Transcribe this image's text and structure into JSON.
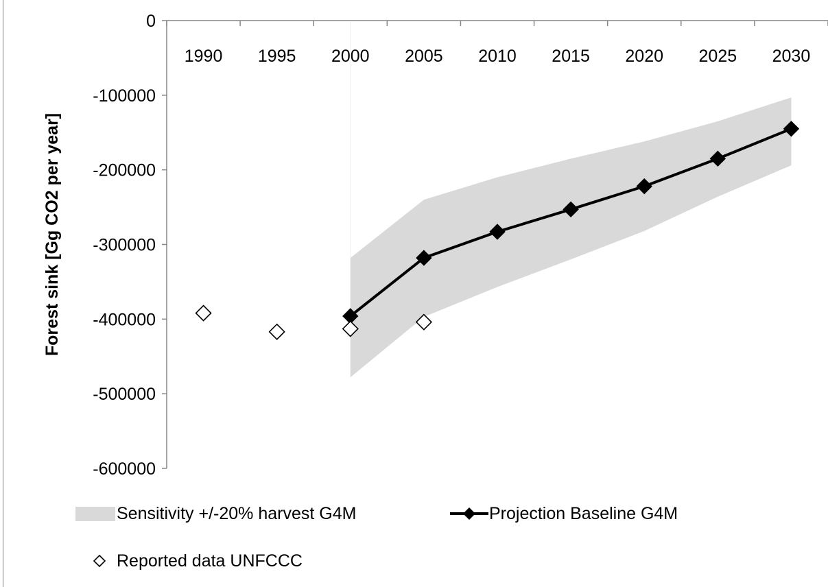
{
  "chart_data": {
    "type": "line",
    "xlabel": "",
    "ylabel": "Forest sink [Gg CO2 per year]",
    "categories": [
      "1990",
      "1995",
      "2000",
      "2005",
      "2010",
      "2015",
      "2020",
      "2025",
      "2030"
    ],
    "y_tick_labels": [
      "0",
      "-100000",
      "-200000",
      "-300000",
      "-400000",
      "-500000",
      "-600000"
    ],
    "ylim": [
      -600000,
      0
    ],
    "grid": false,
    "legend_position": "bottom",
    "series": [
      {
        "name": "Sensitivity +/-20% harvest G4M",
        "kind": "band",
        "color": "#d9d9d9",
        "x": [
          "2000",
          "2005",
          "2010",
          "2015",
          "2020",
          "2025",
          "2030"
        ],
        "upper": [
          -318000,
          -240000,
          -210000,
          -185000,
          -162000,
          -135000,
          -103000
        ],
        "lower": [
          -478000,
          -397000,
          -357000,
          -320000,
          -282000,
          -236000,
          -194000
        ]
      },
      {
        "name": "Projection Baseline G4M",
        "kind": "line-filled-diamond",
        "color": "#000000",
        "x": [
          "2000",
          "2005",
          "2010",
          "2015",
          "2020",
          "2025",
          "2030"
        ],
        "values": [
          -396000,
          -318000,
          -283000,
          -253000,
          -222000,
          -185000,
          -145000
        ]
      },
      {
        "name": "Reported data UNFCCC",
        "kind": "open-diamond",
        "color": "#000000",
        "x": [
          "1990",
          "1995",
          "2000",
          "2005"
        ],
        "values": [
          -392000,
          -417000,
          -413000,
          -404000
        ]
      }
    ]
  }
}
